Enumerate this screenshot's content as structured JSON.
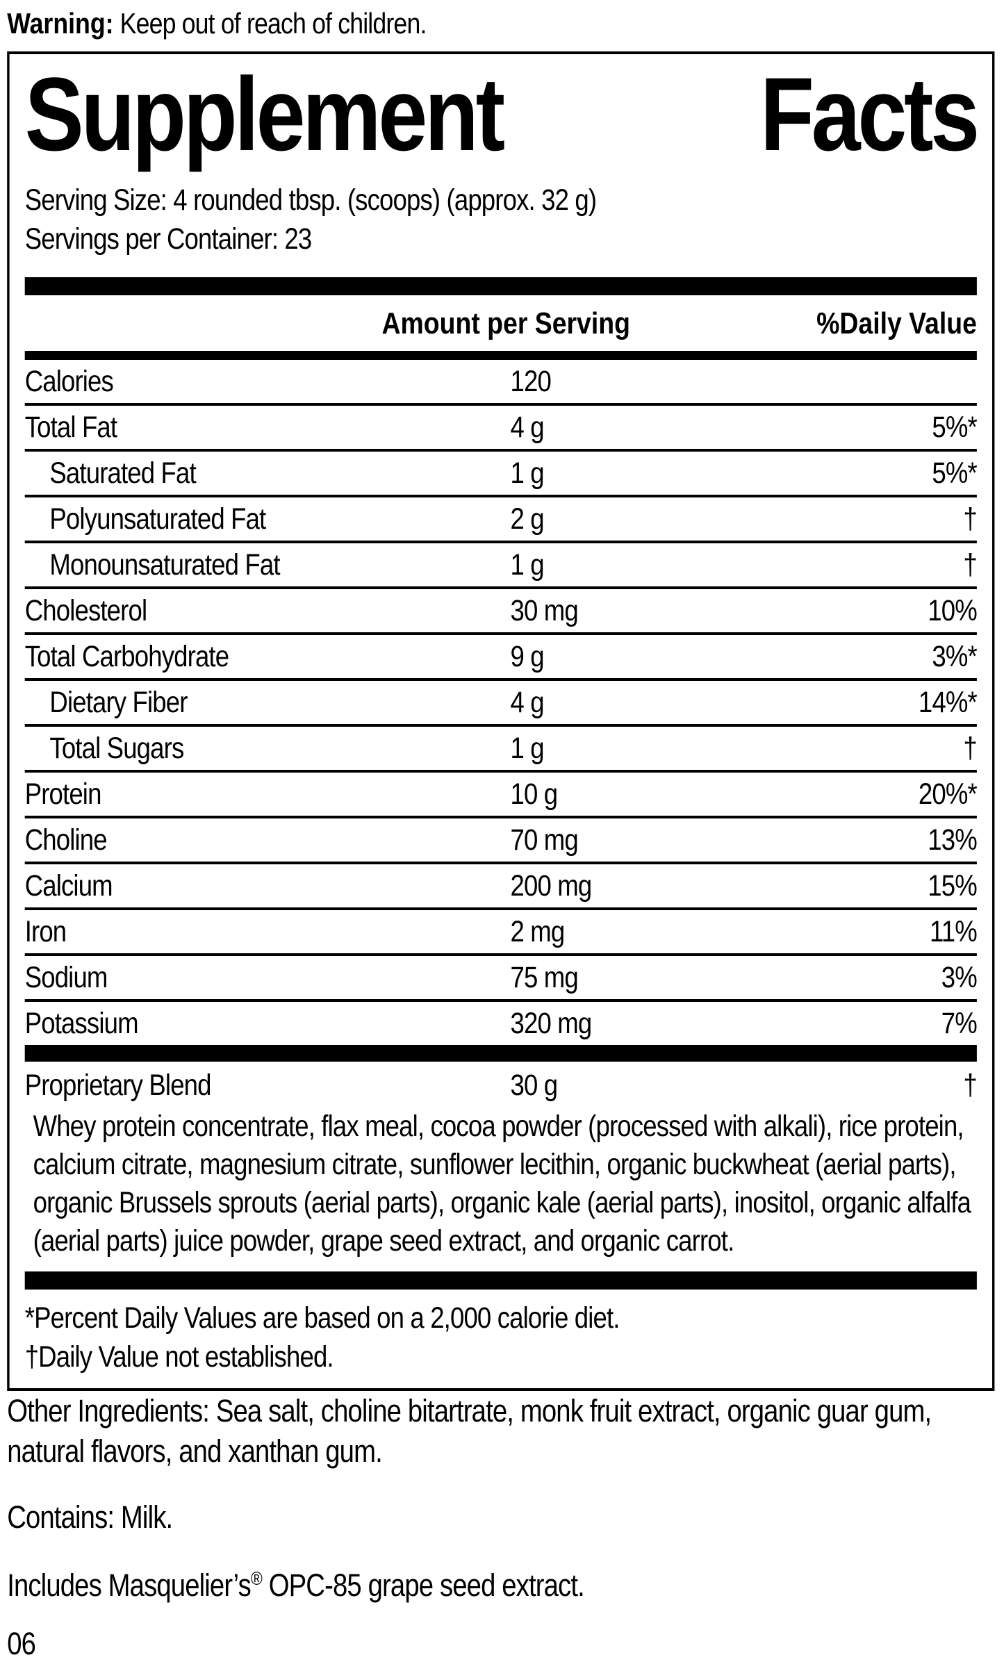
{
  "warning": {
    "label": "Warning:",
    "text": " Keep out of reach of children."
  },
  "panel": {
    "title_left": "Supplement",
    "title_right": "Facts",
    "serving_size": "Serving Size: 4 rounded tbsp. (scoops) (approx. 32 g)",
    "servings_per_container": "Servings per Container: 23",
    "columns": {
      "amount": "Amount per Serving",
      "daily_value": "%Daily Value"
    },
    "rows": [
      {
        "label": "Calories",
        "amount": "120",
        "dv": "",
        "indent": false
      },
      {
        "label": "Total Fat",
        "amount": "4 g",
        "dv": "5%*",
        "indent": false
      },
      {
        "label": "Saturated Fat",
        "amount": "1 g",
        "dv": "5%*",
        "indent": true
      },
      {
        "label": "Polyunsaturated Fat",
        "amount": "2 g",
        "dv": "†",
        "indent": true
      },
      {
        "label": "Monounsaturated Fat",
        "amount": "1 g",
        "dv": "†",
        "indent": true
      },
      {
        "label": "Cholesterol",
        "amount": "30 mg",
        "dv": "10%",
        "indent": false
      },
      {
        "label": "Total Carbohydrate",
        "amount": "9 g",
        "dv": "3%*",
        "indent": false
      },
      {
        "label": "Dietary Fiber",
        "amount": "4 g",
        "dv": "14%*",
        "indent": true
      },
      {
        "label": "Total Sugars",
        "amount": "1 g",
        "dv": "†",
        "indent": true
      },
      {
        "label": "Protein",
        "amount": "10 g",
        "dv": "20%*",
        "indent": false
      },
      {
        "label": "Choline",
        "amount": "70 mg",
        "dv": "13%",
        "indent": false
      },
      {
        "label": "Calcium",
        "amount": "200 mg",
        "dv": "15%",
        "indent": false
      },
      {
        "label": "Iron",
        "amount": "2 mg",
        "dv": "11%",
        "indent": false
      },
      {
        "label": "Sodium",
        "amount": "75 mg",
        "dv": "3%",
        "indent": false
      },
      {
        "label": "Potassium",
        "amount": "320 mg",
        "dv": "7%",
        "indent": false
      }
    ],
    "blend": {
      "label": "Proprietary Blend",
      "amount": "30 g",
      "dv": "†",
      "description": "Whey protein concentrate, flax meal, cocoa powder (processed with alkali), rice protein, calcium citrate, magnesium citrate, sunflower lecithin, organic buckwheat (aerial parts), organic Brussels sprouts (aerial parts), organic kale (aerial parts), inositol, organic alfalfa (aerial parts) juice powder, grape seed extract, and organic carrot."
    },
    "footnotes": [
      "*Percent Daily Values are based on a 2,000 calorie diet.",
      "†Daily Value not established."
    ]
  },
  "other_ingredients": "Other Ingredients: Sea salt, choline bitartrate, monk fruit extract, organic guar gum, natural flavors, and xanthan gum.",
  "contains": "Contains: Milk.",
  "includes": {
    "pre": "Includes Masquelier’s",
    "reg": "®",
    "post": " OPC-85 grape seed extract."
  },
  "code": "06"
}
